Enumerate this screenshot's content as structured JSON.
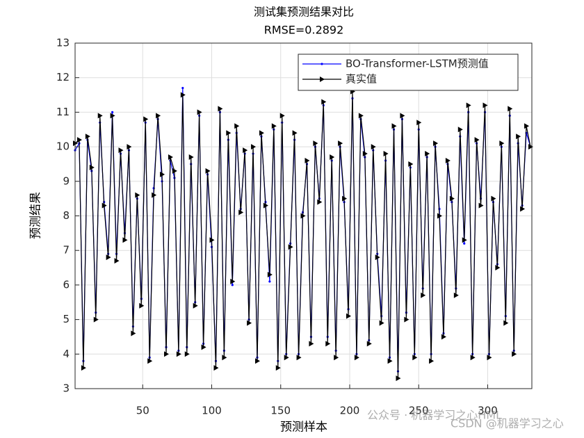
{
  "chart_data": {
    "type": "line",
    "title": "测试集预测结果对比",
    "subtitle": "RMSE=0.2892",
    "x_label": "预测样本",
    "y_label": "预测结果",
    "xlim": [
      1,
      332
    ],
    "ylim": [
      3,
      13
    ],
    "xticks": [
      50,
      100,
      150,
      200,
      250,
      300
    ],
    "yticks": [
      3,
      4,
      5,
      6,
      7,
      8,
      9,
      10,
      11,
      12,
      13
    ],
    "grid": true,
    "legend": "top-right",
    "x": [
      1,
      4,
      7,
      10,
      13,
      16,
      19,
      22,
      25,
      28,
      31,
      34,
      37,
      40,
      43,
      46,
      49,
      52,
      55,
      58,
      61,
      64,
      67,
      70,
      73,
      76,
      79,
      82,
      85,
      88,
      91,
      94,
      97,
      100,
      103,
      106,
      109,
      112,
      115,
      118,
      121,
      124,
      127,
      130,
      133,
      136,
      139,
      142,
      145,
      148,
      151,
      154,
      157,
      160,
      163,
      166,
      169,
      172,
      175,
      178,
      181,
      184,
      187,
      190,
      193,
      196,
      199,
      202,
      205,
      208,
      211,
      214,
      217,
      220,
      223,
      226,
      229,
      232,
      235,
      238,
      241,
      244,
      247,
      250,
      253,
      256,
      259,
      262,
      265,
      268,
      271,
      274,
      277,
      280,
      283,
      286,
      289,
      292,
      295,
      298,
      301,
      304,
      307,
      310,
      313,
      316,
      319,
      322,
      325,
      328,
      331
    ],
    "series": [
      {
        "name": "BO-Transformer-LSTM预测值",
        "color": "#0000ff",
        "marker": "dot",
        "values": [
          9.9,
          10.1,
          3.8,
          10.2,
          9.3,
          5.2,
          10.7,
          8.4,
          6.9,
          11.0,
          6.9,
          9.8,
          7.5,
          9.9,
          4.8,
          8.5,
          5.6,
          10.7,
          3.9,
          8.8,
          10.8,
          9.0,
          4.2,
          9.6,
          9.1,
          4.1,
          11.7,
          4.2,
          9.5,
          5.5,
          10.9,
          4.3,
          9.2,
          7.1,
          3.8,
          11.0,
          4.1,
          10.2,
          6.0,
          10.4,
          8.2,
          9.8,
          5.0,
          9.8,
          3.9,
          10.3,
          8.4,
          6.1,
          10.5,
          3.8,
          10.7,
          4.0,
          7.2,
          10.2,
          4.0,
          8.1,
          9.5,
          4.5,
          10.0,
          8.5,
          11.2,
          4.5,
          9.6,
          4.1,
          10.0,
          8.4,
          5.3,
          11.4,
          4.0,
          10.8,
          9.7,
          4.4,
          9.9,
          6.9,
          5.1,
          9.6,
          3.9,
          10.5,
          3.5,
          10.8,
          5.2,
          9.4,
          4.0,
          10.5,
          5.9,
          9.7,
          4.0,
          10.0,
          8.2,
          4.6,
          9.5,
          8.4,
          5.9,
          10.3,
          7.2,
          11.0,
          4.0,
          10.1,
          8.5,
          11.0,
          4.0,
          8.4,
          6.6,
          10.0,
          5.1,
          10.9,
          4.1,
          10.1,
          8.3,
          10.4,
          10.0
        ]
      },
      {
        "name": "真实值",
        "color": "#000000",
        "marker": "triangle",
        "values": [
          10.1,
          10.2,
          3.6,
          10.3,
          9.4,
          5.0,
          10.9,
          8.3,
          6.8,
          10.9,
          6.7,
          9.9,
          7.3,
          10.0,
          4.6,
          8.6,
          5.4,
          10.8,
          3.8,
          8.6,
          10.9,
          9.2,
          4.0,
          9.7,
          9.3,
          4.0,
          11.5,
          4.0,
          9.7,
          5.4,
          11.0,
          4.2,
          9.3,
          7.3,
          3.6,
          11.1,
          3.9,
          10.4,
          6.1,
          10.6,
          8.1,
          9.9,
          4.9,
          10.0,
          3.8,
          10.4,
          8.3,
          6.3,
          10.6,
          3.6,
          10.9,
          3.9,
          7.1,
          10.4,
          3.9,
          8.0,
          9.6,
          4.3,
          10.1,
          8.4,
          11.3,
          4.3,
          9.7,
          3.9,
          10.1,
          8.5,
          5.1,
          11.6,
          3.9,
          10.9,
          9.8,
          4.3,
          10.0,
          6.8,
          4.9,
          9.8,
          3.8,
          10.6,
          3.3,
          10.9,
          5.0,
          9.5,
          3.9,
          10.7,
          5.7,
          9.8,
          3.8,
          10.1,
          8.0,
          4.5,
          9.6,
          8.5,
          5.7,
          10.5,
          7.3,
          11.2,
          3.9,
          10.2,
          8.3,
          11.2,
          3.9,
          8.5,
          6.5,
          10.1,
          4.9,
          11.1,
          4.0,
          10.3,
          8.2,
          10.6,
          10.0
        ]
      }
    ],
    "watermarks": [
      "公众号 · 机器学习之心HML",
      "CSDN @机器学习之心"
    ]
  }
}
